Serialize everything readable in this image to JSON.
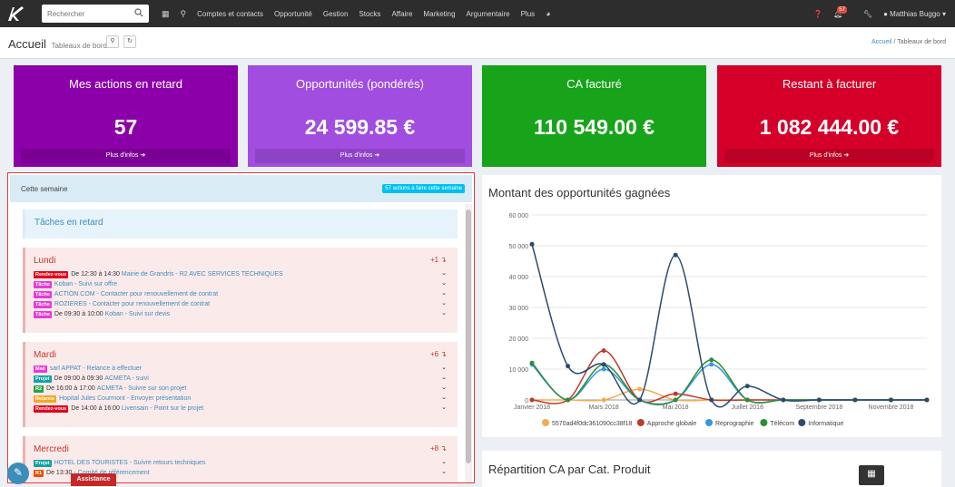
{
  "topbar": {
    "search_placeholder": "Rechercher",
    "nav": [
      "Comptes et contacts",
      "Opportunité",
      "Gestion",
      "Stocks",
      "Affaire",
      "Marketing",
      "Argumentaire",
      "Plus"
    ],
    "notif_count": "57",
    "user": "Matthias Buggo"
  },
  "header": {
    "title": "Accueil",
    "subtitle": "Tableaux de bord",
    "breadcrumb_home": "Accueil",
    "breadcrumb_sep": "/",
    "breadcrumb_current": "Tableaux de bord"
  },
  "stats": [
    {
      "label": "Mes actions en retard",
      "value": "57",
      "more": "Plus d'infos",
      "color": "#8b00a8"
    },
    {
      "label": "Opportunités (pondérés)",
      "value": "24 599.85 €",
      "more": "Plus d'infos",
      "color": "#a14de0"
    },
    {
      "label": "CA facturé",
      "value": "110 549.00 €",
      "more": "",
      "color": "#17a31a"
    },
    {
      "label": "Restant à facturer",
      "value": "1 082 444.00 €",
      "more": "Plus d'infos",
      "color": "#d4002a"
    }
  ],
  "week": {
    "title": "Cette semaine",
    "badge": "57 actions à faire cette semaine",
    "late_label": "Tâches en retard"
  },
  "days": [
    {
      "name": "Lundi",
      "count": "+1",
      "tasks": [
        {
          "tag": "Rendez-vous",
          "color": "#e3001b",
          "text": "De 12:30 à 14:30",
          "link": "Mairie de Grandris - R2 AVEC SERVICES TECHNIQUES"
        },
        {
          "tag": "Tâche",
          "color": "#e83ad6",
          "text": "",
          "link": "Koban - Suivi sur offre"
        },
        {
          "tag": "Tâche",
          "color": "#e83ad6",
          "text": "",
          "link": "ACTION COM - Contacter pour renouvellement de contrat"
        },
        {
          "tag": "Tâche",
          "color": "#e83ad6",
          "text": "",
          "link": "ROZIERES - Contacter pour renouvellement de contrat"
        },
        {
          "tag": "Tâche",
          "color": "#e83ad6",
          "text": "De 09:30 à 10:00",
          "link": "Koban - Suivi sur devis"
        }
      ]
    },
    {
      "name": "Mardi",
      "count": "+6",
      "tasks": [
        {
          "tag": "Mail",
          "color": "#e83ad6",
          "text": "",
          "link": "sarl APPAT - Relance à effectuer"
        },
        {
          "tag": "Projet",
          "color": "#0fa3a3",
          "text": "De 09:00 à 09:30",
          "link": "ACMETA - suivi"
        },
        {
          "tag": "R2",
          "color": "#20a34a",
          "text": "De 16:00 à 17:00",
          "link": "ACMETA - Suivre sur son projet"
        },
        {
          "tag": "Relance",
          "color": "#f5a623",
          "text": "",
          "link": "Hopital Jules Courmont - Envoyer présentation"
        },
        {
          "tag": "Rendez-vous",
          "color": "#e3001b",
          "text": "De 14:00 à 16:00",
          "link": "Livensain - Point sur le projet"
        }
      ]
    },
    {
      "name": "Mercredi",
      "count": "+8",
      "tasks": [
        {
          "tag": "Projet",
          "color": "#0fa3a3",
          "text": "",
          "link": "HOTEL DES TOURISTES - Suivre retours techniques"
        },
        {
          "tag": "R1",
          "color": "#e65100",
          "text": "De 13:30",
          "link": "- Comité de référencement"
        }
      ]
    }
  ],
  "chart_title": "Montant des opportunités gagnées",
  "chart2_title": "Répartition CA par Cat. Produit",
  "assistance": "Assistance",
  "chart_data": {
    "type": "line",
    "title": "Montant des opportunités gagnées",
    "x": [
      "Janvier 2018",
      "Février 2018",
      "Mars 2018",
      "Avril 2018",
      "Mai 2018",
      "Juin 2018",
      "Juillet 2018",
      "Août 2018",
      "Septembre 2018",
      "Octobre 2018",
      "Novembre 2018",
      "Décembre 2018"
    ],
    "xticks": [
      "Janvier 2018",
      "Mars 2018",
      "Mai 2018",
      "Juillet 2018",
      "Septembre 2018",
      "Novembre 2018"
    ],
    "ylim": [
      0,
      60000
    ],
    "yticks": [
      "0",
      "10 000",
      "20 000",
      "30 000",
      "40 000",
      "50 000",
      "60 000"
    ],
    "legend_position": "bottom",
    "series": [
      {
        "name": "5570ad4f0dc361090cc38f18",
        "color": "#f0ad4e",
        "values": [
          0,
          0,
          0,
          3500,
          0,
          0,
          0,
          0,
          0,
          0,
          0,
          0
        ]
      },
      {
        "name": "Approche globale",
        "color": "#c0392b",
        "values": [
          0,
          0,
          16000,
          0,
          2000,
          0,
          0,
          0,
          0,
          0,
          0,
          0
        ]
      },
      {
        "name": "Reprographie",
        "color": "#3498db",
        "values": [
          11500,
          0,
          10000,
          0,
          0,
          11500,
          0,
          0,
          0,
          0,
          0,
          0
        ]
      },
      {
        "name": "Télécom",
        "color": "#2e8b3a",
        "values": [
          12000,
          0,
          11500,
          0,
          0,
          13000,
          0,
          0,
          0,
          0,
          0,
          0
        ]
      },
      {
        "name": "Informatique",
        "color": "#2c4a6e",
        "values": [
          50500,
          11000,
          11500,
          0,
          47000,
          0,
          4500,
          0,
          0,
          0,
          0,
          0
        ]
      }
    ]
  }
}
